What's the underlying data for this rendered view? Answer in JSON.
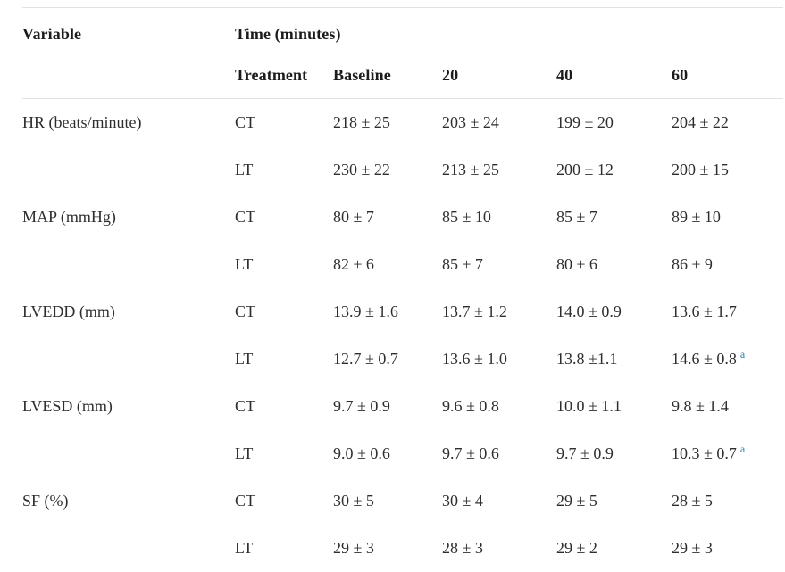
{
  "colors": {
    "accent_footnote_link": "#2b7cb3",
    "rule": "#e2e2e2",
    "body_text": "#2e2e2e",
    "header_text": "#1c1c1c"
  },
  "chart_data": {
    "type": "table",
    "title": "",
    "column_group_label": "Time (minutes)",
    "columns": [
      "Variable",
      "Treatment",
      "Baseline",
      "20",
      "40",
      "60"
    ],
    "rows": [
      {
        "variable": "HR (beats/minute)",
        "treatment": "CT",
        "values": [
          "218 ± 25",
          "203 ± 24",
          "199 ± 20",
          "204 ± 22"
        ]
      },
      {
        "variable": "",
        "treatment": "LT",
        "values": [
          "230 ± 22",
          "213 ± 25",
          "200 ± 12",
          "200 ± 15"
        ]
      },
      {
        "variable": "MAP (mmHg)",
        "treatment": "CT",
        "values": [
          "80 ± 7",
          "85 ± 10",
          "85 ± 7",
          "89 ± 10"
        ]
      },
      {
        "variable": "",
        "treatment": "LT",
        "values": [
          "82 ± 6",
          "85 ± 7",
          "80 ± 6",
          "86 ± 9"
        ]
      },
      {
        "variable": "LVEDD (mm)",
        "treatment": "CT",
        "values": [
          "13.9 ± 1.6",
          "13.7 ± 1.2",
          "14.0 ± 0.9",
          "13.6 ± 1.7"
        ]
      },
      {
        "variable": "",
        "treatment": "LT",
        "values": [
          "12.7 ± 0.7",
          "13.6 ± 1.0",
          "13.8 ±1.1",
          "14.6 ± 0.8"
        ],
        "footnote_col": 3,
        "footnote_label": "a"
      },
      {
        "variable": "LVESD (mm)",
        "treatment": "CT",
        "values": [
          "9.7 ± 0.9",
          "9.6 ± 0.8",
          "10.0 ± 1.1",
          "9.8 ± 1.4"
        ]
      },
      {
        "variable": "",
        "treatment": "LT",
        "values": [
          "9.0 ± 0.6",
          "9.7 ± 0.6",
          "9.7 ± 0.9",
          "10.3 ± 0.7"
        ],
        "footnote_col": 3,
        "footnote_label": "a"
      },
      {
        "variable": "SF (%)",
        "treatment": "CT",
        "values": [
          "30 ± 5",
          "30 ± 4",
          "29 ± 5",
          "28 ± 5"
        ]
      },
      {
        "variable": "",
        "treatment": "LT",
        "values": [
          "29 ± 3",
          "28 ± 3",
          "29 ± 2",
          "29 ± 3"
        ]
      }
    ]
  },
  "table": {
    "header": {
      "variable_label": "Variable",
      "time_label": "Time (minutes)",
      "columns": [
        "Treatment",
        "Baseline",
        "20",
        "40",
        "60"
      ]
    }
  }
}
